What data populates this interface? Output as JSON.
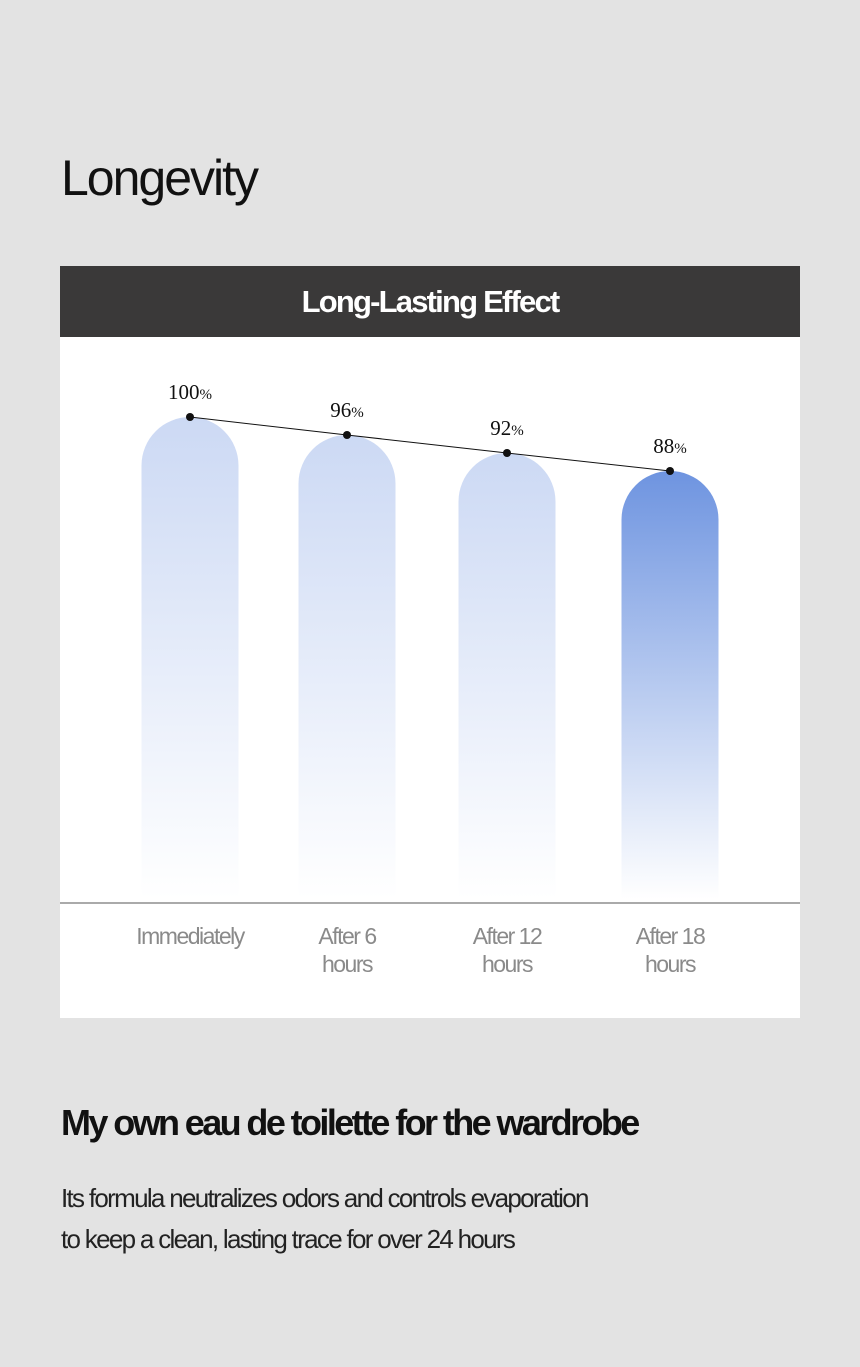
{
  "page": {
    "title": "Longevity",
    "subtitle": "My own eau de toilette for the wardrobe",
    "body_lines": [
      "Its formula neutralizes odors and controls evaporation",
      "to keep a clean, lasting trace for over 24 hours"
    ]
  },
  "chart_data": {
    "type": "bar",
    "title": "Long-Lasting Effect",
    "categories": [
      "Immediately",
      "After 6 hours",
      "After 12 hours",
      "After 18 hours"
    ],
    "category_lines": [
      [
        "Immediately"
      ],
      [
        "After 6",
        "hours"
      ],
      [
        "After 12",
        "hours"
      ],
      [
        "After 18",
        "hours"
      ]
    ],
    "values": [
      100,
      96,
      92,
      88
    ],
    "unit": "%",
    "value_labels": [
      "100",
      "96",
      "92",
      "88"
    ],
    "highlight_index": 3,
    "trend_line": true,
    "ylim": [
      0,
      100
    ],
    "colors": {
      "header_bg": "#3a3939",
      "bar_top": "#ccd9f4",
      "bar_highlight_top": "#6e94e0",
      "bar_bottom": "#ffffff",
      "axis": "#555555"
    }
  }
}
